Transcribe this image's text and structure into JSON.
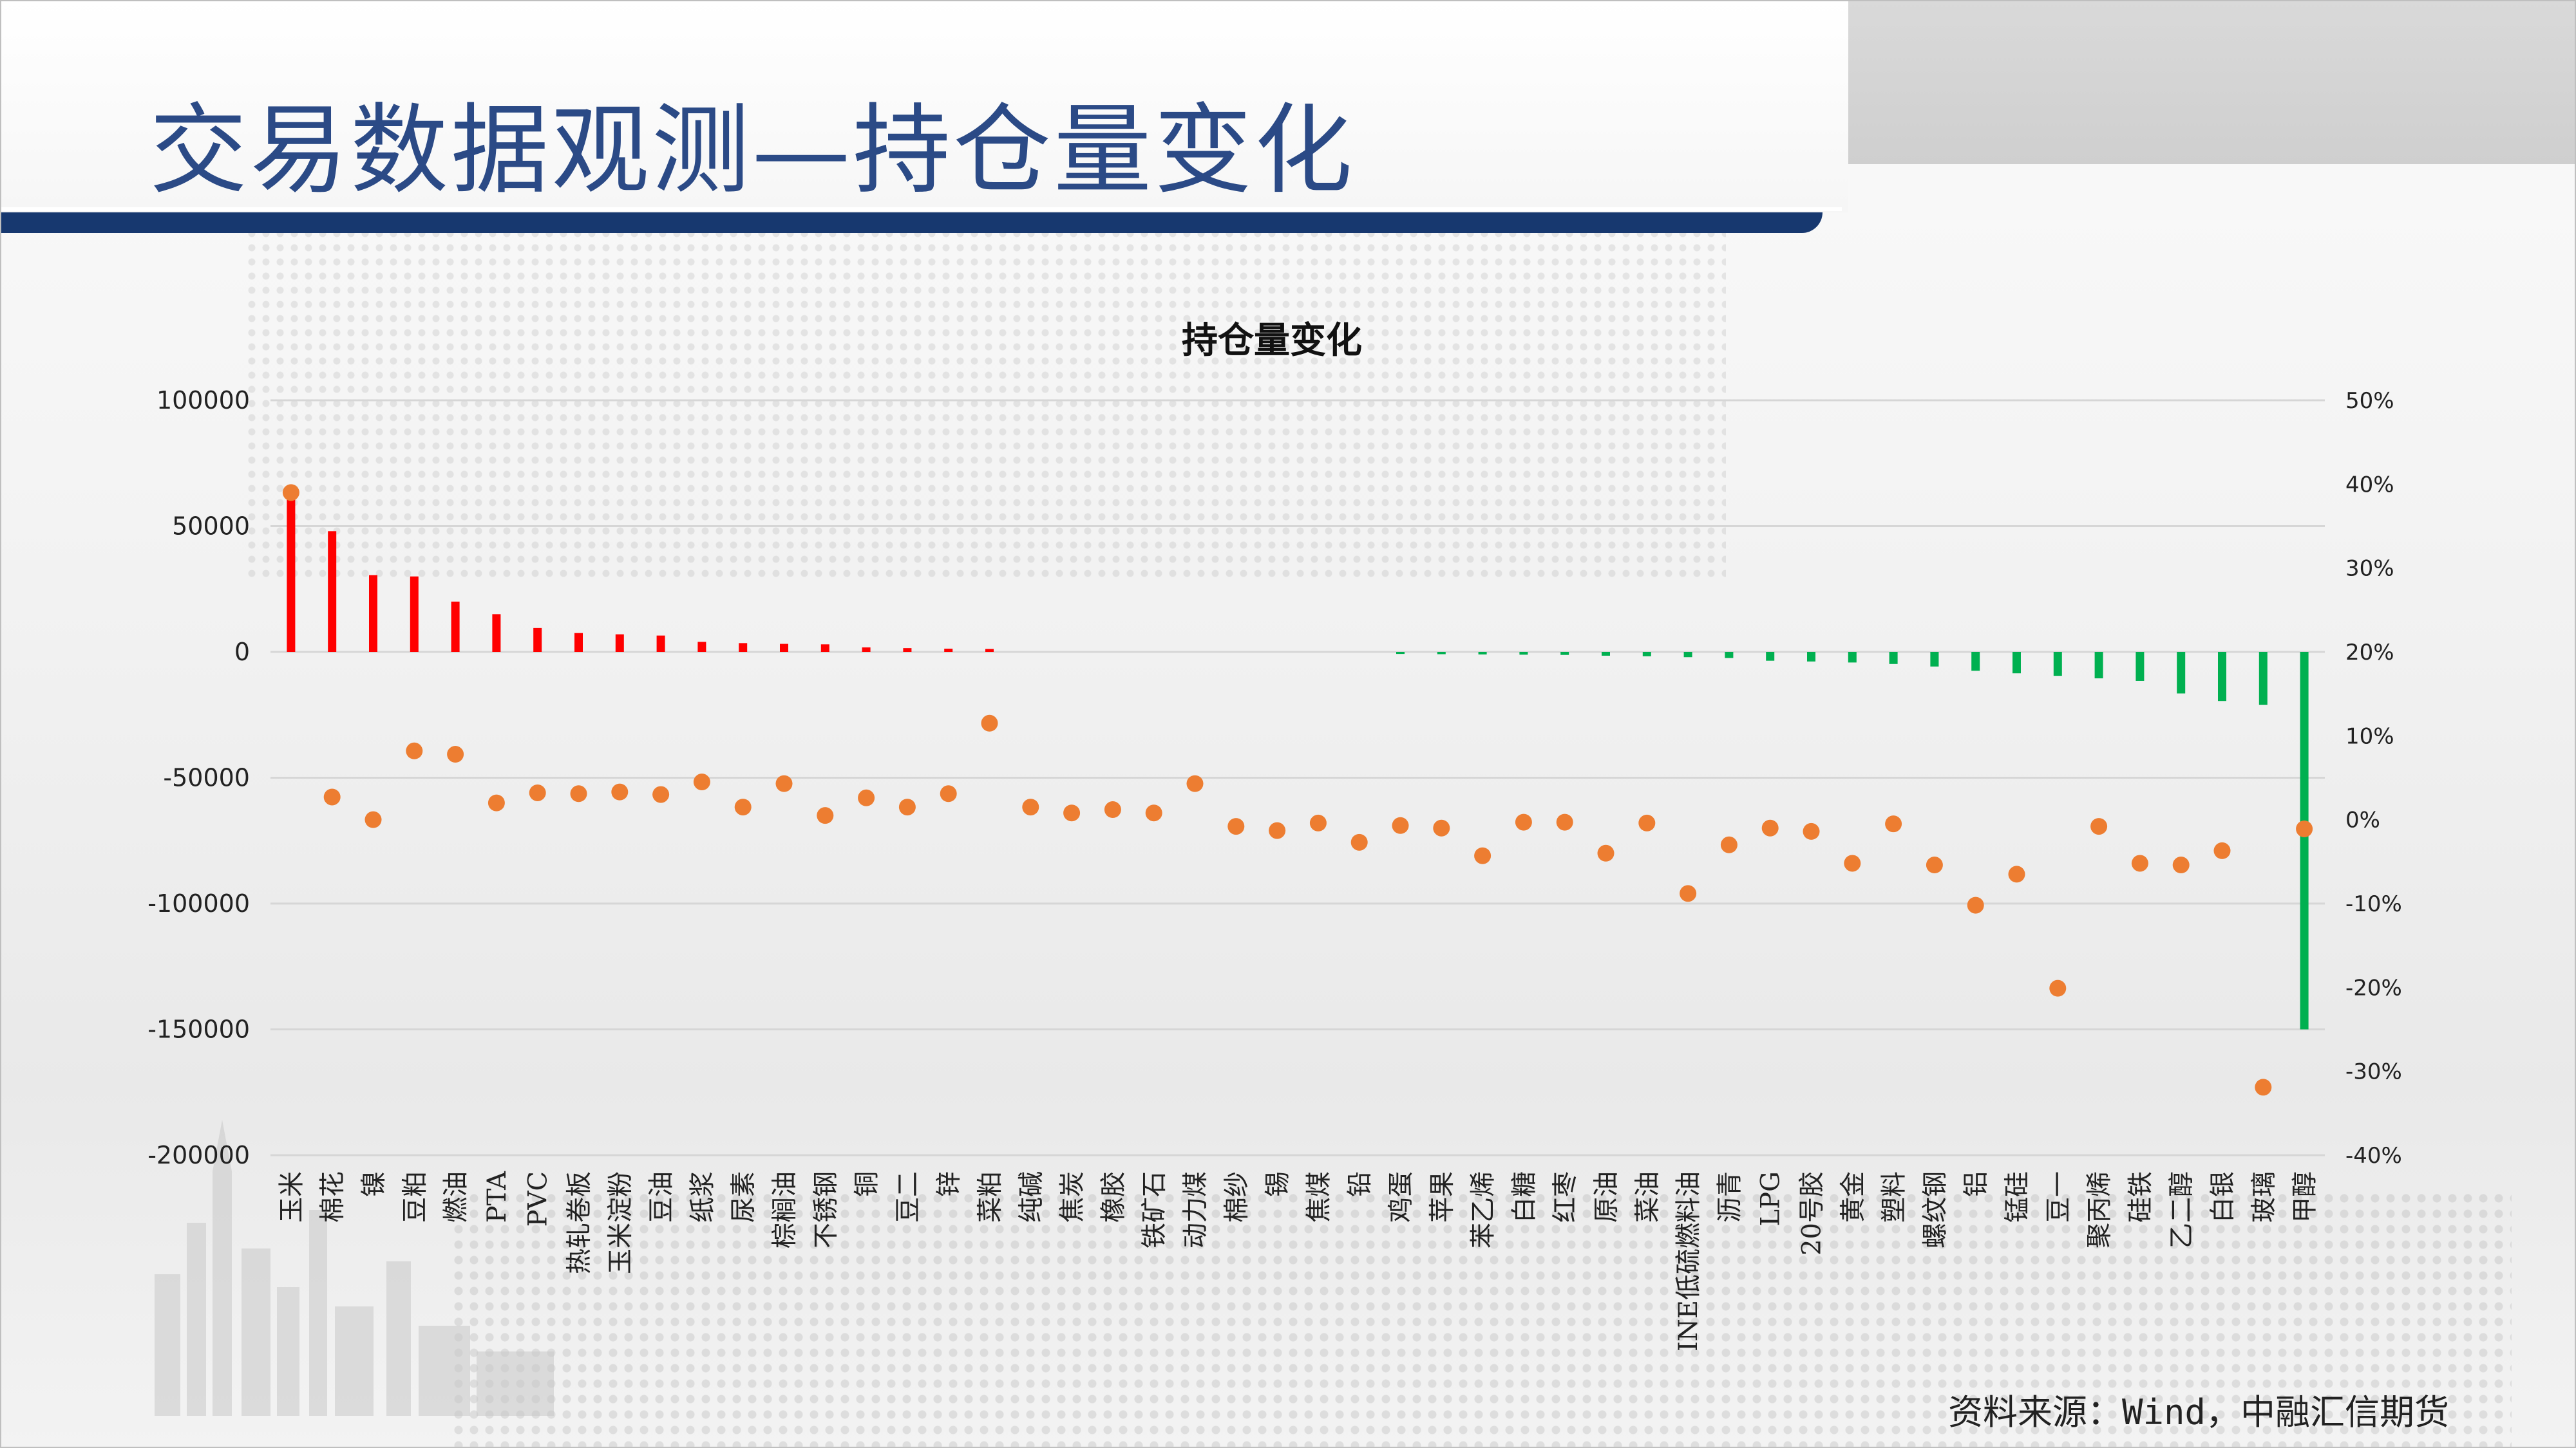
{
  "slide": {
    "title": "交易数据观测—持仓量变化",
    "source": "资料来源：Wind，中融汇信期货"
  },
  "colors": {
    "positive_bar": "#ff0000",
    "negative_bar": "#00b050",
    "dot": "#ed7d31",
    "title_text": "#2b4a86",
    "band": "#17386f"
  },
  "chart_data": {
    "type": "bar",
    "title": "持仓量变化",
    "categories": [
      "玉米",
      "棉花",
      "镍",
      "豆粕",
      "燃油",
      "PTA",
      "PVC",
      "热轧卷板",
      "玉米淀粉",
      "豆油",
      "纸浆",
      "尿素",
      "棕榈油",
      "不锈钢",
      "铜",
      "豆二",
      "锌",
      "菜粕",
      "纯碱",
      "焦炭",
      "橡胶",
      "铁矿石",
      "动力煤",
      "棉纱",
      "锡",
      "焦煤",
      "铅",
      "鸡蛋",
      "苹果",
      "苯乙烯",
      "白糖",
      "红枣",
      "原油",
      "菜油",
      "INE低硫燃料油",
      "沥青",
      "LPG",
      "20号胶",
      "黄金",
      "塑料",
      "螺纹钢",
      "铝",
      "锰硅",
      "豆一",
      "聚丙烯",
      "硅铁",
      "乙二醇",
      "白银",
      "玻璃",
      "甲醇"
    ],
    "series": [
      {
        "axis": "left",
        "kind": "bar",
        "values": [
          63000,
          48000,
          30500,
          30000,
          20000,
          15000,
          9500,
          7500,
          7000,
          6500,
          4000,
          3500,
          3200,
          3000,
          1800,
          1500,
          1300,
          1200,
          0,
          0,
          0,
          0,
          0,
          0,
          0,
          0,
          0,
          -800,
          -900,
          -1000,
          -1100,
          -1200,
          -1500,
          -1700,
          -2100,
          -2400,
          -3500,
          -3800,
          -4200,
          -4800,
          -5800,
          -7500,
          -8500,
          -9500,
          -10500,
          -11500,
          -16500,
          -19500,
          -21000,
          -150000
        ]
      },
      {
        "axis": "right",
        "kind": "scatter",
        "values": [
          39,
          2.7,
          0,
          8.2,
          7.8,
          2,
          3.2,
          3.1,
          3.3,
          3,
          4.5,
          1.5,
          4.3,
          0.5,
          2.6,
          1.5,
          3.1,
          11.5,
          1.5,
          0.8,
          1.2,
          0.8,
          4.3,
          -0.8,
          -1.3,
          -0.4,
          -2.7,
          -0.7,
          -1,
          -4.3,
          -0.3,
          -0.3,
          -4,
          -0.4,
          -8.8,
          -3,
          -1,
          -1.4,
          -5.2,
          -0.5,
          -5.4,
          -10.2,
          -6.5,
          -20.1,
          -0.8,
          -5.2,
          -5.4,
          -3.7,
          -31.9,
          -1.1
        ]
      }
    ],
    "ylim": [
      -200000,
      100000
    ],
    "yticks": [
      "-200000",
      "-150000",
      "-100000",
      "-50000",
      "0",
      "50000",
      "100000"
    ],
    "y2lim": [
      -40,
      50
    ],
    "y2ticks": [
      "-40%",
      "-30%",
      "-20%",
      "-10%",
      "0%",
      "10%",
      "20%",
      "30%",
      "40%",
      "50%"
    ],
    "grid": true,
    "legend": "none"
  }
}
